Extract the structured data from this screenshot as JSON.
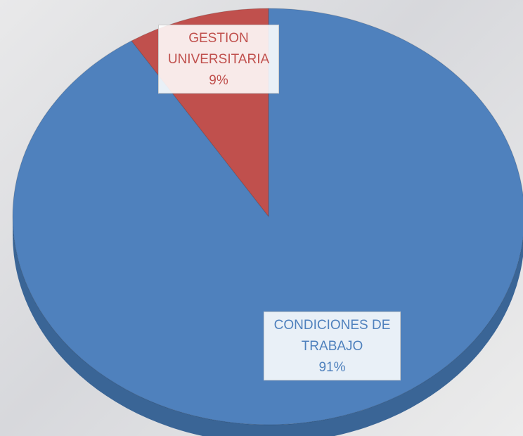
{
  "chart_data": {
    "type": "pie",
    "categories": [
      "GESTION UNIVERSITARIA",
      "CONDICIONES DE TRABAJO"
    ],
    "values": [
      9,
      91
    ],
    "value_labels": [
      "9%",
      "91%"
    ],
    "colors": [
      "#c0504d",
      "#4f81bd"
    ]
  }
}
